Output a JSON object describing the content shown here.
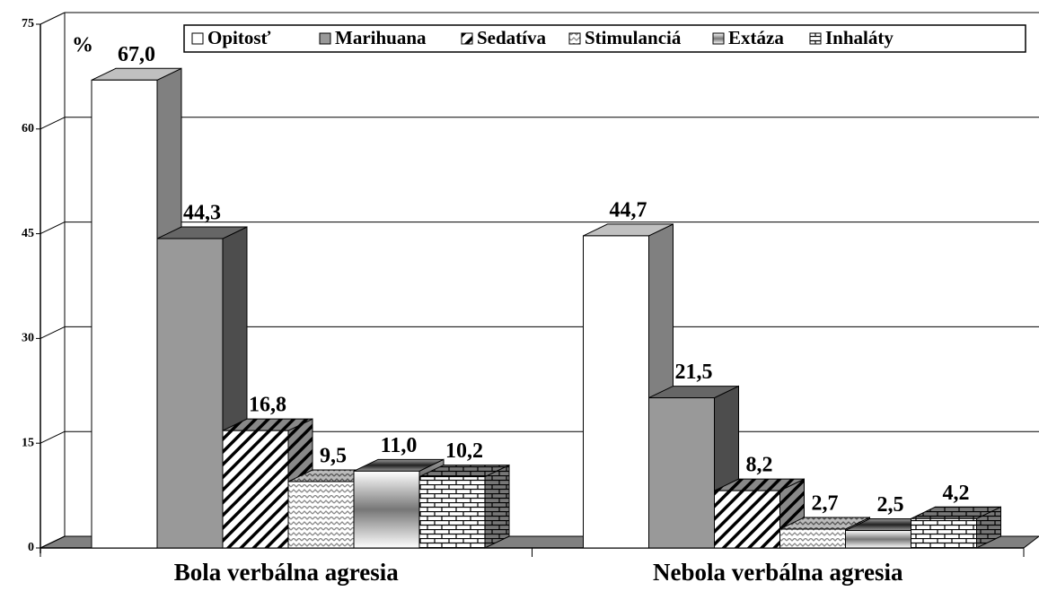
{
  "chart_data": {
    "type": "bar3d",
    "categories": [
      "Bola verbálna agresia",
      "Nebola verbálna agresia"
    ],
    "series": [
      {
        "name": "Opitosť",
        "color": "#ffffff",
        "values": [
          67.0,
          44.7
        ],
        "value_labels": [
          "67,0",
          "44,7"
        ]
      },
      {
        "name": "Marihuana",
        "color": "#999999",
        "values": [
          44.3,
          21.5
        ],
        "value_labels": [
          "44,3",
          "21,5"
        ]
      },
      {
        "name": "Sedatíva",
        "color": "#000000",
        "values": [
          16.8,
          8.2
        ],
        "value_labels": [
          "16,8",
          "8,2"
        ]
      },
      {
        "name": "Stimulanciá",
        "color": "#aaaaaa",
        "values": [
          9.5,
          2.7
        ],
        "value_labels": [
          "9,5",
          "2,7"
        ]
      },
      {
        "name": "Extáza",
        "color": "#666666",
        "values": [
          11.0,
          2.5
        ],
        "value_labels": [
          "11,0",
          "2,5"
        ]
      },
      {
        "name": "Inhaláty",
        "color": "#333333",
        "values": [
          10.2,
          4.2
        ],
        "value_labels": [
          "10,2",
          "4,2"
        ]
      }
    ],
    "y_unit_label": "%",
    "ylim": [
      0,
      75
    ],
    "yticks": [
      0,
      15,
      30,
      45,
      60,
      75
    ],
    "grid": true,
    "legend": "top"
  }
}
